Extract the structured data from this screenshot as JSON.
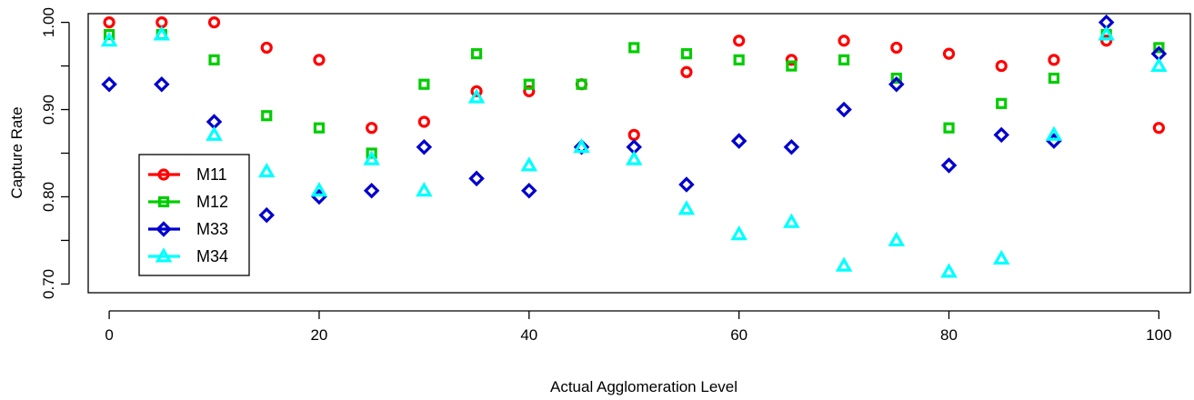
{
  "chart_data": {
    "type": "scatter",
    "title": "",
    "xlabel": "Actual Agglomeration Level",
    "ylabel": "Capture Rate",
    "xlim": [
      -2,
      103
    ],
    "ylim": [
      0.69,
      1.01
    ],
    "x_ticks": [
      0,
      20,
      40,
      60,
      80,
      100
    ],
    "x_tick_labels": [
      "0",
      "20",
      "40",
      "60",
      "80",
      "100"
    ],
    "y_ticks": [
      0.7,
      0.8,
      0.9,
      1.0
    ],
    "y_tick_labels": [
      "0.70",
      "0.80",
      "0.90",
      "1.00"
    ],
    "grid": false,
    "legend_position": "bottom-left",
    "x": [
      0,
      5,
      10,
      15,
      20,
      25,
      30,
      35,
      40,
      45,
      50,
      55,
      60,
      65,
      70,
      75,
      80,
      85,
      90,
      95,
      100
    ],
    "series": [
      {
        "name": "M11",
        "color": "#ff0000",
        "marker": "circle",
        "values": [
          1.0,
          1.0,
          1.0,
          0.971,
          0.957,
          0.879,
          0.886,
          0.921,
          0.921,
          0.929,
          0.871,
          0.943,
          0.979,
          0.957,
          0.979,
          0.971,
          0.964,
          0.95,
          0.957,
          0.979,
          0.879
        ]
      },
      {
        "name": "M12",
        "color": "#00cd00",
        "marker": "square",
        "values": [
          0.986,
          0.986,
          0.957,
          0.893,
          0.879,
          0.85,
          0.929,
          0.964,
          0.929,
          0.929,
          0.971,
          0.964,
          0.957,
          0.95,
          0.957,
          0.936,
          0.879,
          0.907,
          0.936,
          0.986,
          0.971
        ]
      },
      {
        "name": "M33",
        "color": "#0000cd",
        "marker": "diamond",
        "values": [
          0.929,
          0.929,
          0.886,
          0.779,
          0.8,
          0.807,
          0.857,
          0.821,
          0.807,
          0.857,
          0.857,
          0.814,
          0.864,
          0.857,
          0.9,
          0.929,
          0.836,
          0.871,
          0.864,
          1.0,
          0.964
        ]
      },
      {
        "name": "M34",
        "color": "#00ffff",
        "marker": "triangle",
        "values": [
          0.979,
          0.986,
          0.871,
          0.829,
          0.807,
          0.843,
          0.807,
          0.914,
          0.836,
          0.857,
          0.843,
          0.786,
          0.757,
          0.771,
          0.721,
          0.75,
          0.714,
          0.729,
          0.871,
          0.986,
          0.95
        ]
      }
    ]
  }
}
